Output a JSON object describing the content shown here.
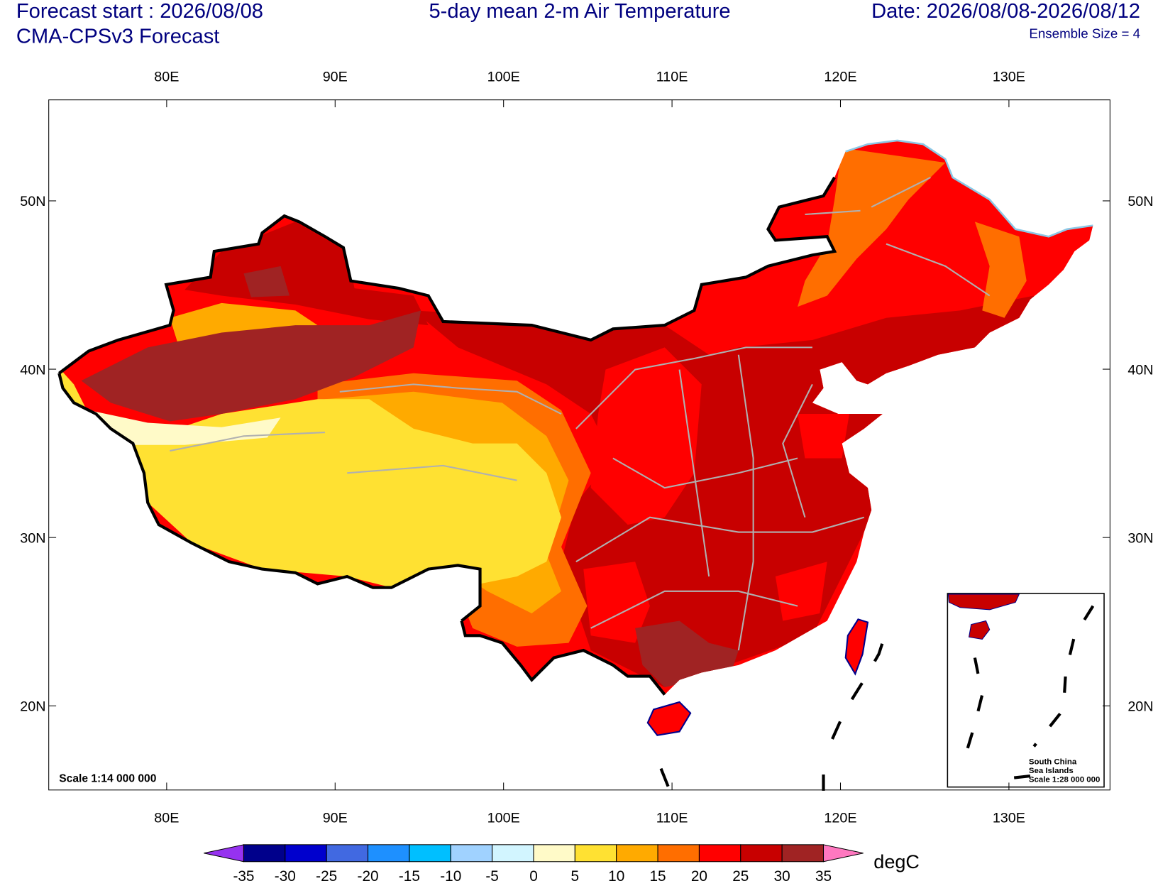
{
  "header": {
    "forecast_start": "Forecast start : 2026/08/08",
    "model": "CMA-CPSv3 Forecast",
    "date_range": "Date: 2026/08/08-2026/08/12",
    "ensemble": "Ensemble Size = 4"
  },
  "chart_data": {
    "type": "map",
    "title": "5-day mean 2-m Air Temperature",
    "xlim": [
      73,
      136
    ],
    "ylim": [
      15,
      56
    ],
    "xticks": [
      {
        "value": 80,
        "label": "80E"
      },
      {
        "value": 90,
        "label": "90E"
      },
      {
        "value": 100,
        "label": "100E"
      },
      {
        "value": 110,
        "label": "110E"
      },
      {
        "value": 120,
        "label": "120E"
      },
      {
        "value": 130,
        "label": "130E"
      }
    ],
    "yticks": [
      {
        "value": 20,
        "label": "20N"
      },
      {
        "value": 30,
        "label": "30N"
      },
      {
        "value": 40,
        "label": "40N"
      },
      {
        "value": 50,
        "label": "50N"
      }
    ],
    "colorbar": {
      "levels": [
        -35,
        -30,
        -25,
        -20,
        -15,
        -10,
        -5,
        0,
        5,
        10,
        15,
        20,
        25,
        30,
        35
      ],
      "colors": [
        "#9632f0",
        "#00008b",
        "#0000cd",
        "#4169e1",
        "#1e90ff",
        "#00bfff",
        "#a0d2ff",
        "#d2f5ff",
        "#fffac8",
        "#ffe132",
        "#ffaa00",
        "#ff6e00",
        "#ff0000",
        "#c80000",
        "#a02323",
        "#ff78c0"
      ],
      "label": "degC"
    },
    "scale_label": "Scale 1:14 000 000",
    "inset": {
      "lines": [
        "South China",
        "Sea Islands",
        "Scale 1:28 000 000"
      ]
    }
  }
}
